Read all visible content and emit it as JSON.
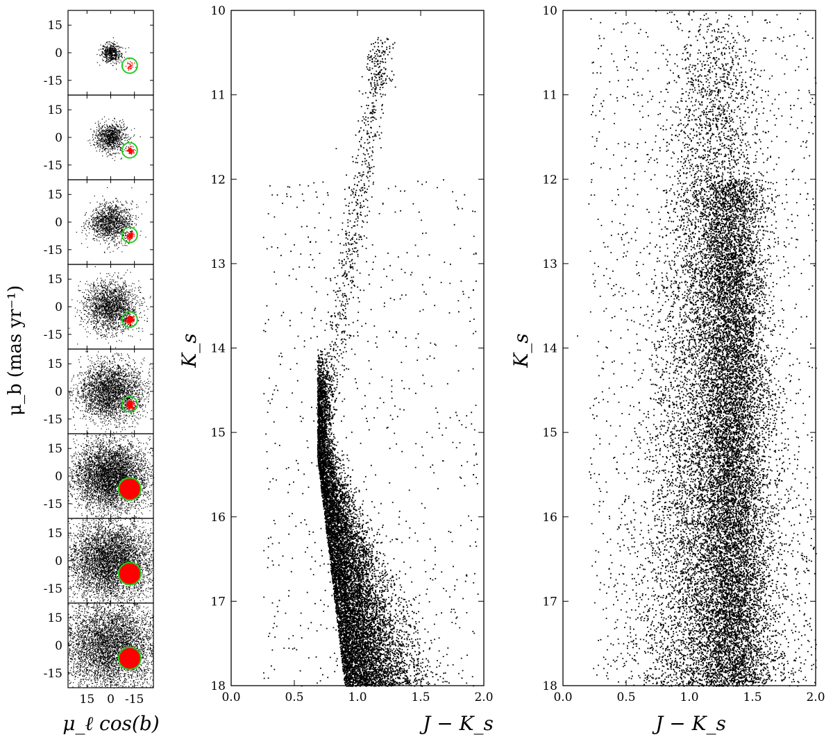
{
  "figure": {
    "left_column": {
      "ylabel": "μ_b   (mas yr⁻¹)",
      "xlabel": "μ_ℓ cos(b)",
      "yticks": [
        "15",
        "0",
        "-15"
      ],
      "xticks": [
        "15",
        "0",
        "-15"
      ]
    },
    "middle_panel": {
      "xlabel": "J − K_s",
      "ylabel": "K_s"
    },
    "right_panel": {
      "xlabel": "J − K_s",
      "ylabel": "K_s"
    }
  },
  "chart_data": [
    {
      "type": "scatter",
      "panel": "proper-motion-diagrams",
      "subpanels": 8,
      "xlabel": "μ_ℓ cos(b)",
      "ylabel": "μ_b (mas yr⁻¹)",
      "xlim": [
        27,
        -27
      ],
      "ylim": [
        -23,
        23
      ],
      "xticks": [
        15,
        0,
        -15
      ],
      "yticks": [
        15,
        0,
        -15
      ],
      "series": [
        {
          "role": "field",
          "color": "#000000",
          "center": [
            0,
            0
          ]
        },
        {
          "role": "cluster",
          "color": "#ff0000",
          "center": [
            -12,
            -7
          ]
        }
      ],
      "selection_circle": {
        "color": "#22cc22",
        "center": [
          -12,
          -7
        ],
        "fill_in_lower_panels": "#ff0000"
      },
      "field_point_counts": [
        500,
        900,
        1300,
        2000,
        3000,
        5000,
        8000,
        11000
      ]
    },
    {
      "type": "scatter",
      "panel": "cmd-selected-members",
      "xlabel": "J − K_s",
      "ylabel": "K_s",
      "xlim": [
        0.0,
        2.0
      ],
      "ylim": [
        18,
        10
      ],
      "xticks": [
        "0.0",
        "0.5",
        "1.0",
        "1.5",
        "2.0"
      ],
      "yticks": [
        "10",
        "11",
        "12",
        "13",
        "14",
        "15",
        "16",
        "17",
        "18"
      ],
      "y_inverted": true,
      "marker_color": "#000000",
      "features": {
        "red_giant_branch_top": [
          1.2,
          10.3
        ],
        "red_clump": [
          1.15,
          10.7
        ],
        "main_sequence_turnoff": [
          0.7,
          15.5
        ]
      }
    },
    {
      "type": "scatter",
      "panel": "cmd-field",
      "xlabel": "J − K_s",
      "ylabel": "K_s",
      "xlim": [
        0.0,
        2.0
      ],
      "ylim": [
        18,
        10
      ],
      "xticks": [
        "0.0",
        "0.5",
        "1.0",
        "1.5",
        "2.0"
      ],
      "yticks": [
        "10",
        "11",
        "12",
        "13",
        "14",
        "15",
        "16",
        "17",
        "18"
      ],
      "y_inverted": true,
      "marker_color": "#000000"
    }
  ]
}
